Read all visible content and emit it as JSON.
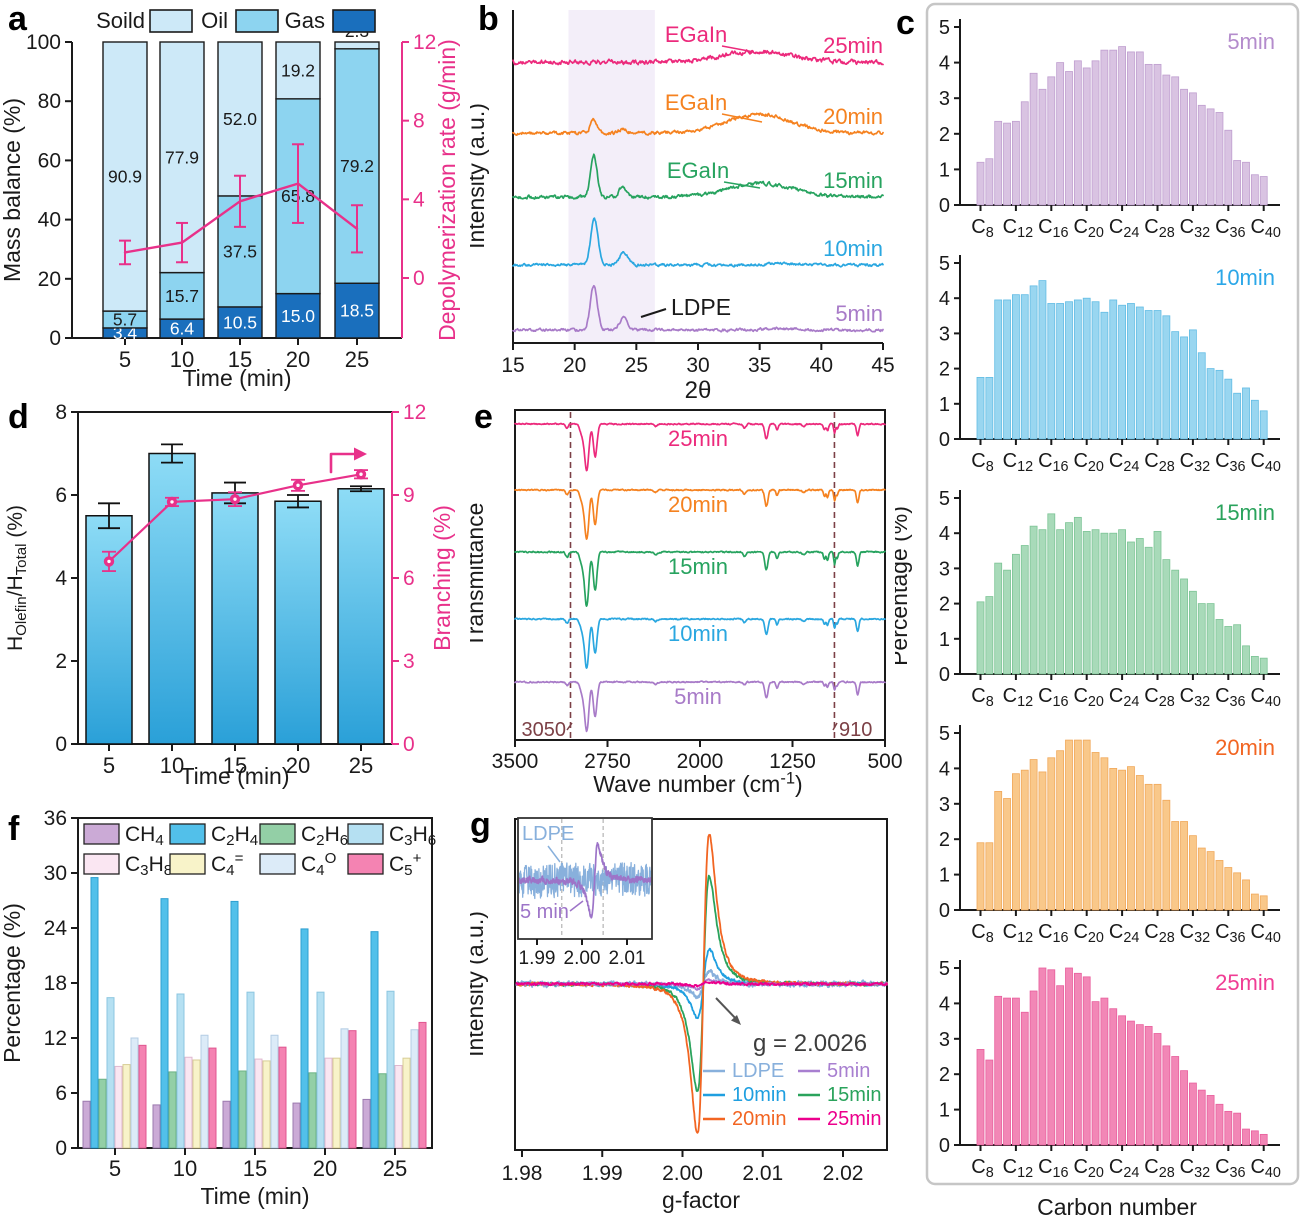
{
  "chart_data": [
    {
      "panel": "a",
      "type": "stacked-bar+line",
      "legend": [
        {
          "label": "Soild",
          "fill": "#cde9f8"
        },
        {
          "label": "Oil",
          "fill": "#8dd4f0"
        },
        {
          "label": "Gas",
          "fill": "#1a6fbd"
        }
      ],
      "xlabel": "Time (min)",
      "ylabel": "Mass balance (%)",
      "ylabel_right": "Depolymerization rate (g/min)",
      "categories": [
        5,
        10,
        15,
        20,
        25
      ],
      "yticks_left": [
        0,
        20,
        40,
        60,
        80,
        100
      ],
      "yticks_right": [
        0,
        4,
        8,
        12
      ],
      "ylim_left": [
        0,
        100
      ],
      "ylim_right": [
        0,
        12
      ],
      "series": [
        {
          "name": "Gas",
          "fill": "#1a6fbd",
          "label_color": "#ffffff",
          "values": [
            3.4,
            6.4,
            10.5,
            15.0,
            18.5
          ]
        },
        {
          "name": "Oil",
          "fill": "#8dd4f0",
          "label_color": "#1a1a1a",
          "values": [
            5.7,
            15.7,
            37.5,
            65.8,
            79.2
          ]
        },
        {
          "name": "Soild",
          "fill": "#cde9f8",
          "label_color": "#1a1a1a",
          "values": [
            90.9,
            77.9,
            52.0,
            19.2,
            2.3
          ]
        }
      ],
      "rate_line": {
        "color": "#e8318a",
        "values": [
          1.3,
          1.8,
          3.9,
          4.8,
          2.5
        ],
        "errors": [
          0.6,
          1.0,
          1.3,
          2.0,
          1.2
        ]
      }
    },
    {
      "panel": "b",
      "type": "line",
      "xlabel": "2θ",
      "ylabel": "Intensity (a.u.)",
      "x_range": [
        15,
        45
      ],
      "xticks": [
        15,
        20,
        25,
        30,
        35,
        40,
        45
      ],
      "band": [
        19.5,
        26.5
      ],
      "annotations": {
        "egain": "EGaIn",
        "ldpe": "LDPE"
      },
      "traces": [
        {
          "name": "5min",
          "color": "#a87bc8",
          "peaks": [
            [
              21.55,
              1.0,
              0.28
            ],
            [
              23.95,
              0.27,
              0.33
            ]
          ],
          "hump": [
            36.5,
            0.03,
            1.2
          ],
          "noise": 0.012
        },
        {
          "name": "10min",
          "color": "#2aa7e0",
          "peaks": [
            [
              21.6,
              1.02,
              0.3
            ],
            [
              24.0,
              0.27,
              0.36
            ]
          ],
          "hump": [
            36.5,
            0.035,
            1.2
          ],
          "noise": 0.012
        },
        {
          "name": "15min",
          "color": "#27a35f",
          "peaks": [
            [
              21.55,
              0.95,
              0.26
            ],
            [
              23.9,
              0.24,
              0.3
            ]
          ],
          "hump": [
            35.2,
            0.3,
            2.6
          ],
          "noise": 0.015,
          "egain": true
        },
        {
          "name": "20min",
          "color": "#f58220",
          "peaks": [
            [
              21.55,
              0.3,
              0.26
            ],
            [
              23.9,
              0.09,
              0.3
            ]
          ],
          "hump": [
            35.0,
            0.42,
            2.6
          ],
          "noise": 0.015,
          "egain": true
        },
        {
          "name": "25min",
          "color": "#ec2a7c",
          "peaks": [],
          "hump": [
            34.8,
            0.24,
            2.6
          ],
          "noise": 0.02,
          "egain": true
        }
      ]
    },
    {
      "panel": "c",
      "type": "bar",
      "xlabel": "Carbon number",
      "ylabel": "Percentage (%)",
      "yticks": [
        0,
        1,
        2,
        3,
        4,
        5
      ],
      "ylim": [
        0,
        5
      ],
      "carbon_start": 8,
      "carbon_end": 40,
      "xtick_labels": [
        "C~8~",
        "C~12~",
        "C~16~",
        "C~20~",
        "C~24~",
        "C~28~",
        "C~32~",
        "C~36~",
        "C~40~"
      ],
      "subplots": [
        {
          "name": "5min",
          "label_color": "#b48ccc",
          "fill": "#d9c3e2",
          "edge": "#bf9ecf",
          "values": [
            1.2,
            1.3,
            2.35,
            2.3,
            2.35,
            2.9,
            3.7,
            3.25,
            3.6,
            4.0,
            3.75,
            4.05,
            3.85,
            4.05,
            4.35,
            4.35,
            4.45,
            4.3,
            4.3,
            3.95,
            3.95,
            3.65,
            3.6,
            3.25,
            3.15,
            2.8,
            2.7,
            2.6,
            2.1,
            1.25,
            1.2,
            0.85,
            0.8
          ]
        },
        {
          "name": "10min",
          "label_color": "#2ba7e8",
          "fill": "#99d6f0",
          "edge": "#62bce4",
          "values": [
            1.75,
            1.75,
            3.95,
            3.95,
            4.1,
            4.1,
            4.35,
            4.5,
            3.85,
            3.85,
            3.9,
            3.95,
            4.0,
            3.9,
            3.6,
            3.95,
            3.8,
            3.85,
            3.75,
            3.65,
            3.65,
            3.5,
            3.05,
            2.9,
            3.1,
            2.45,
            2.0,
            1.95,
            1.7,
            1.3,
            1.45,
            1.1,
            0.8
          ]
        },
        {
          "name": "15min",
          "label_color": "#2aa35c",
          "fill": "#a8dab9",
          "edge": "#7cc495",
          "values": [
            2.05,
            2.2,
            3.15,
            2.95,
            3.4,
            3.65,
            4.2,
            4.1,
            4.55,
            4.1,
            4.3,
            4.45,
            4.05,
            4.1,
            4.0,
            4.0,
            4.1,
            3.75,
            3.85,
            3.6,
            4.05,
            3.25,
            2.95,
            2.7,
            2.35,
            2.0,
            2.0,
            1.55,
            1.35,
            1.4,
            0.8,
            0.5,
            0.45
          ]
        },
        {
          "name": "20min",
          "label_color": "#f26522",
          "fill": "#f9c88a",
          "edge": "#f0a85a",
          "values": [
            1.9,
            1.9,
            3.35,
            3.15,
            3.85,
            3.95,
            4.25,
            3.9,
            4.3,
            4.5,
            4.8,
            4.8,
            4.8,
            4.45,
            4.3,
            4.0,
            3.95,
            4.05,
            3.8,
            3.55,
            3.55,
            3.1,
            2.5,
            2.5,
            2.1,
            1.75,
            1.65,
            1.4,
            1.2,
            1.05,
            0.85,
            0.45,
            0.4
          ]
        },
        {
          "name": "25min",
          "label_color": "#f03d94",
          "fill": "#f287b6",
          "edge": "#e85f9d",
          "values": [
            2.7,
            2.4,
            4.2,
            4.15,
            4.15,
            3.75,
            4.35,
            5.0,
            4.95,
            4.5,
            5.0,
            4.85,
            4.75,
            4.05,
            4.15,
            3.85,
            3.65,
            3.5,
            3.4,
            3.35,
            3.15,
            2.8,
            2.5,
            2.1,
            1.75,
            1.55,
            1.4,
            1.15,
            0.95,
            0.9,
            0.45,
            0.4,
            0.3
          ]
        }
      ]
    },
    {
      "panel": "d",
      "type": "bar+line",
      "xlabel": "Time (min)",
      "ylabel": "H~Olefin~/H~Total~ (%)",
      "ylabel_right": "Branching (%)",
      "categories": [
        5,
        10,
        15,
        20,
        25
      ],
      "yticks_left": [
        0,
        2,
        4,
        6,
        8
      ],
      "yticks_right": [
        0,
        3,
        6,
        9,
        12
      ],
      "ylim_left": [
        0,
        8
      ],
      "ylim_right": [
        0,
        12
      ],
      "bars": {
        "values": [
          5.5,
          7.0,
          6.05,
          5.85,
          6.15
        ],
        "errors": [
          0.3,
          0.22,
          0.25,
          0.15,
          0.06
        ],
        "fill_top": "#8edcf6",
        "fill_bottom": "#2aa0d8"
      },
      "branching_line": {
        "color": "#e8318a",
        "values": [
          6.6,
          8.75,
          8.85,
          9.35,
          9.75
        ],
        "errors": [
          0.35,
          0.15,
          0.25,
          0.2,
          0.15
        ]
      }
    },
    {
      "panel": "e",
      "type": "line",
      "xlabel": "Wave number (cm^-1^)",
      "ylabel": "Transmittance",
      "x_range": [
        3500,
        500
      ],
      "xticks": [
        3500,
        2750,
        2000,
        1250,
        500
      ],
      "dashed_lines": [
        3050,
        910
      ],
      "dash_labels": [
        "3050",
        "910"
      ],
      "dips_common": [
        [
          2955,
          0.22,
          18
        ],
        [
          2918,
          1.0,
          17
        ],
        [
          2850,
          0.72,
          15
        ],
        [
          2360,
          0.05,
          14
        ],
        [
          1462,
          0.33,
          13
        ],
        [
          1375,
          0.12,
          9
        ],
        [
          1160,
          0.05,
          12
        ],
        [
          722,
          0.26,
          10
        ]
      ],
      "dips_vinyl": [
        [
          3078,
          0.1,
          11
        ],
        [
          1641,
          0.09,
          11
        ],
        [
          991,
          0.14,
          8
        ],
        [
          966,
          0.16,
          8
        ],
        [
          909,
          0.24,
          7
        ],
        [
          888,
          0.12,
          7
        ]
      ],
      "traces": [
        {
          "name": "5min",
          "color": "#a87bc8",
          "vinyl": 0.7,
          "depth": 1.0
        },
        {
          "name": "10min",
          "color": "#2aa7e0",
          "vinyl": 0.85,
          "depth": 1.0
        },
        {
          "name": "15min",
          "color": "#27a35f",
          "vinyl": 1.0,
          "depth": 1.1
        },
        {
          "name": "20min",
          "color": "#f58220",
          "vinyl": 0.95,
          "depth": 1.0
        },
        {
          "name": "25min",
          "color": "#ec2a7c",
          "vinyl": 0.9,
          "depth": 0.95
        }
      ]
    },
    {
      "panel": "f",
      "type": "grouped-bar",
      "xlabel": "Time (min)",
      "ylabel": "Percentage (%)",
      "categories": [
        5,
        10,
        15,
        20,
        25
      ],
      "yticks": [
        0,
        6,
        12,
        18,
        24,
        30,
        36
      ],
      "ylim": [
        0,
        36
      ],
      "series": [
        {
          "name": "CH~4~",
          "fill": "#cbaad6",
          "edge": "#9b79ae",
          "values": [
            5.1,
            4.7,
            5.1,
            4.9,
            5.3
          ]
        },
        {
          "name": "C~2~H~4~",
          "fill": "#52c0ea",
          "edge": "#2e9fd0",
          "values": [
            29.5,
            27.2,
            26.9,
            23.9,
            23.6
          ]
        },
        {
          "name": "C~2~H~6~",
          "fill": "#93cfa6",
          "edge": "#6cb385",
          "values": [
            7.5,
            8.3,
            8.4,
            8.2,
            8.1
          ]
        },
        {
          "name": "C~3~H~6~",
          "fill": "#b5e0f2",
          "edge": "#8cc6e0",
          "values": [
            16.4,
            16.8,
            17.0,
            17.0,
            17.1
          ]
        },
        {
          "name": "C~3~H~8~",
          "fill": "#fae6f2",
          "edge": "#e0b8cf",
          "values": [
            8.9,
            9.9,
            9.7,
            9.8,
            9.0
          ]
        },
        {
          "name": "C~4~^=^",
          "fill": "#f8f3c9",
          "edge": "#d8cd96",
          "values": [
            9.1,
            9.6,
            9.5,
            9.8,
            9.8
          ]
        },
        {
          "name": "C~4~^O^",
          "fill": "#dcebf8",
          "edge": "#b4cde4",
          "values": [
            12.0,
            12.3,
            12.3,
            13.0,
            12.9
          ]
        },
        {
          "name": "C~5~^+^",
          "fill": "#f483b2",
          "edge": "#e05690",
          "values": [
            11.2,
            10.9,
            11.0,
            12.8,
            13.7
          ]
        }
      ]
    },
    {
      "panel": "g",
      "type": "line",
      "xlabel": "g-factor",
      "ylabel": "Intensity (a.u.)",
      "xticks": [
        1.98,
        1.99,
        2.0,
        2.01,
        2.02
      ],
      "x_range": [
        1.98,
        2.025
      ],
      "annotation": "g = 2.0026",
      "g_center": 2.0026,
      "traces": [
        {
          "name": "LDPE",
          "color": "#88b0dc",
          "amp": 0.08
        },
        {
          "name": "10min",
          "color": "#1f9fe0",
          "amp": 0.23
        },
        {
          "name": "15min",
          "color": "#2aa35c",
          "amp": 0.72
        },
        {
          "name": "20min",
          "color": "#f26522",
          "amp": 1.0
        },
        {
          "name": "5min",
          "color": "#a87fd0",
          "amp": 0.03
        },
        {
          "name": "25min",
          "color": "#ec008c",
          "amp": 0.012
        }
      ],
      "legend_rows": [
        [
          "LDPE",
          "5min"
        ],
        [
          "10min",
          "15min"
        ],
        [
          "20min",
          "25min"
        ]
      ],
      "inset": {
        "xticks": [
          1.99,
          2.0,
          2.01
        ],
        "labels": [
          "LDPE",
          "5 min"
        ],
        "dashed_g": [
          1.9955,
          2.0047
        ]
      }
    }
  ]
}
